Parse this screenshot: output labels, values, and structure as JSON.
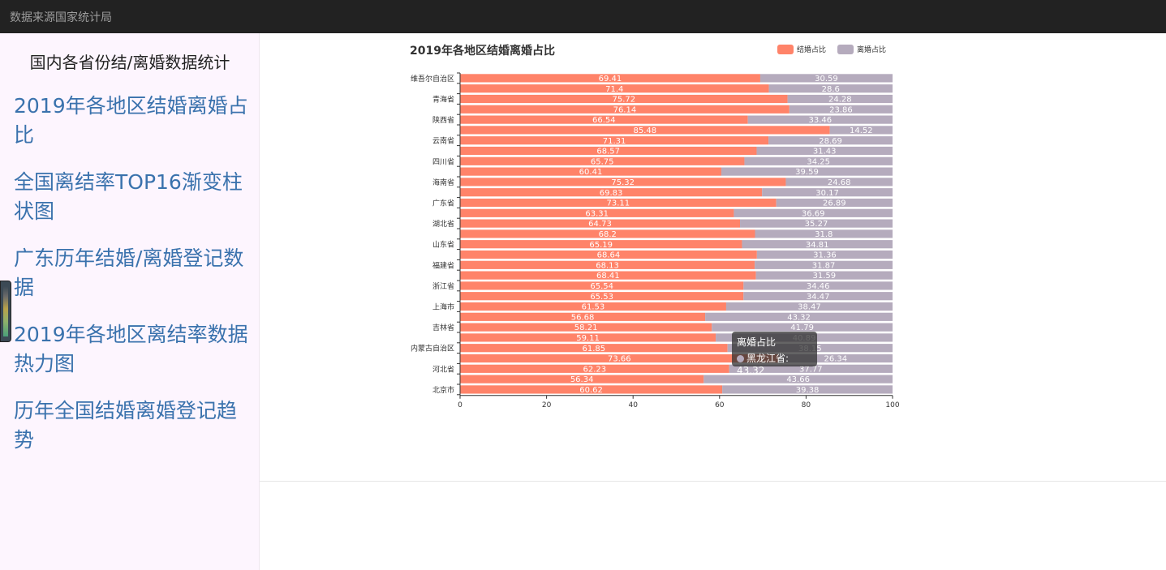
{
  "topbar": {
    "title": "数据来源国家统计局"
  },
  "sidebar": {
    "title": "国内各省份结/离婚数据统计",
    "items": [
      {
        "label": "2019年各地区结婚离婚占比"
      },
      {
        "label": "全国离结率TOP16渐变柱状图"
      },
      {
        "label": "广东历年结婚/离婚登记数据"
      },
      {
        "label": "2019年各地区离结率数据热力图"
      },
      {
        "label": "历年全国结婚离婚登记趋势"
      }
    ]
  },
  "colors": {
    "marriage": "#ff8369",
    "divorce": "#b5abbd"
  },
  "chart_data": {
    "type": "bar",
    "orientation": "horizontal",
    "stacked": true,
    "title": "2019年各地区结婚离婚占比",
    "xlim": [
      0,
      100
    ],
    "xticks": [
      "0",
      "20",
      "40",
      "60",
      "80",
      "100"
    ],
    "legend_position": "top-right",
    "categories_top_to_bottom": [
      "维吾尔自治区",
      "",
      "青海省",
      "",
      "陕西省",
      "",
      "云南省",
      "",
      "四川省",
      "",
      "海南省",
      "",
      "广东省",
      "",
      "湖北省",
      "",
      "山东省",
      "",
      "福建省",
      "",
      "浙江省",
      "",
      "上海市",
      "",
      "吉林省",
      "",
      "内蒙古自治区",
      "",
      "河北省",
      "",
      "北京市"
    ],
    "series": [
      {
        "name": "结婚占比",
        "values": [
          69.41,
          71.4,
          75.72,
          76.14,
          66.54,
          85.48,
          71.31,
          68.57,
          65.75,
          60.41,
          75.32,
          69.83,
          73.11,
          63.31,
          64.73,
          68.2,
          65.19,
          68.64,
          68.13,
          68.41,
          65.54,
          65.53,
          61.53,
          56.68,
          58.21,
          59.11,
          61.85,
          73.66,
          62.23,
          56.34,
          60.62
        ]
      },
      {
        "name": "离婚占比",
        "values": [
          30.59,
          28.6,
          24.28,
          23.86,
          33.46,
          14.52,
          28.69,
          31.43,
          34.25,
          39.59,
          24.68,
          30.17,
          26.89,
          36.69,
          35.27,
          31.8,
          34.81,
          31.36,
          31.87,
          31.59,
          34.46,
          34.47,
          38.47,
          43.32,
          41.79,
          40.89,
          38.15,
          26.34,
          37.77,
          43.66,
          39.38
        ]
      }
    ]
  },
  "tooltip": {
    "title": "离婚占比",
    "entry": "黑龙江省: 43.32"
  }
}
